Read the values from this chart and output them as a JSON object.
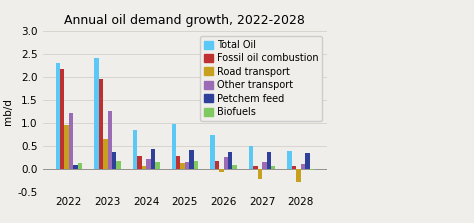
{
  "title": "Annual oil demand growth, 2022-2028",
  "ylabel": "mb/d",
  "years": [
    2022,
    2023,
    2024,
    2025,
    2026,
    2027,
    2028
  ],
  "series": {
    "Total Oil": [
      2.3,
      2.42,
      0.85,
      0.98,
      0.74,
      0.5,
      0.38
    ],
    "Fossil oil combustion": [
      2.17,
      1.96,
      0.29,
      0.29,
      0.18,
      0.07,
      0.07
    ],
    "Road transport": [
      0.95,
      0.65,
      0.07,
      0.13,
      -0.07,
      -0.22,
      -0.28
    ],
    "Other transport": [
      1.21,
      1.27,
      0.22,
      0.16,
      0.25,
      0.15,
      0.11
    ],
    "Petchem feed": [
      0.09,
      0.36,
      0.44,
      0.42,
      0.37,
      0.36,
      0.34
    ],
    "Biofuels": [
      0.12,
      0.17,
      0.14,
      0.18,
      0.09,
      0.06,
      -0.02
    ]
  },
  "colors": {
    "Total Oil": "#5bc8f5",
    "Fossil oil combustion": "#bf3030",
    "Road transport": "#c8a020",
    "Other transport": "#9b6bb5",
    "Petchem feed": "#2e4099",
    "Biofuels": "#80c860"
  },
  "ylim": [
    -0.5,
    3.0
  ],
  "yticks": [
    -0.5,
    0.0,
    0.5,
    1.0,
    1.5,
    2.0,
    2.5,
    3.0
  ],
  "ytick_labels": [
    "-0.5",
    "0.0",
    "0.5",
    "1.0",
    "1.5",
    "2.0",
    "2.5",
    "3.0"
  ],
  "background_color": "#f0eeea",
  "title_fontsize": 9,
  "axis_fontsize": 7.5,
  "legend_fontsize": 7
}
